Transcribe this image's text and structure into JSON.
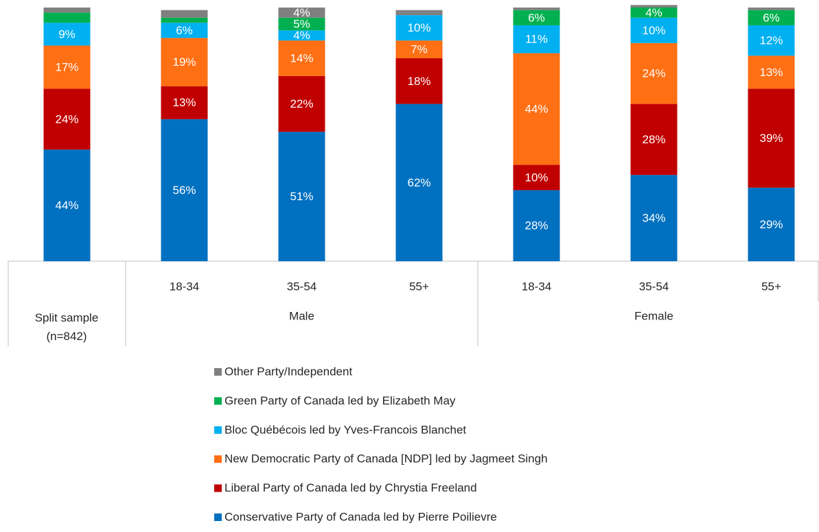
{
  "chart_data": {
    "type": "stacked-bar",
    "categories": [
      "Split sample (n=842)",
      "18-34",
      "35-54",
      "55+",
      "18-34",
      "35-54",
      "55+"
    ],
    "groups": [
      {
        "name": "Male",
        "categories": [
          1,
          2,
          3
        ]
      },
      {
        "name": "Female",
        "categories": [
          4,
          5,
          6
        ]
      }
    ],
    "ylim": [
      0,
      100
    ],
    "series": [
      {
        "name": "Conservative Party of Canada led by Pierre Poilievre",
        "color": "#0070c0",
        "values": [
          44,
          56,
          51,
          62,
          28,
          34,
          29
        ],
        "value_labels": [
          "44%",
          "56%",
          "51%",
          "62%",
          "28%",
          "34%",
          "29%"
        ]
      },
      {
        "name": "Liberal Party of Canada led by Chrystia Freeland",
        "color": "#c00000",
        "values": [
          24,
          13,
          22,
          18,
          10,
          28,
          39
        ],
        "value_labels": [
          "24%",
          "13%",
          "22%",
          "18%",
          "10%",
          "28%",
          "39%"
        ]
      },
      {
        "name": "New Democratic Party of Canada [NDP] led by Jagmeet Singh",
        "color": "#ff6f13",
        "values": [
          17,
          19,
          14,
          7,
          44,
          24,
          13
        ],
        "value_labels": [
          "17%",
          "19%",
          "14%",
          "7%",
          "44%",
          "24%",
          "13%"
        ]
      },
      {
        "name": "Bloc Québécois led by Yves-Francois Blanchet",
        "color": "#00b0f0",
        "values": [
          9,
          6,
          4,
          10,
          11,
          10,
          12
        ],
        "value_labels": [
          "9%",
          "6%",
          "4%",
          "10%",
          "11%",
          "10%",
          "12%"
        ]
      },
      {
        "name": "Green Party of Canada led by Elizabeth May",
        "color": "#00b050",
        "values": [
          4,
          2,
          5,
          0,
          6,
          4,
          6
        ],
        "value_labels": [
          null,
          null,
          "5%",
          null,
          "6%",
          "4%",
          "6%"
        ]
      },
      {
        "name": "Other Party/Independent",
        "color": "#808080",
        "values": [
          2,
          3,
          4,
          2,
          1,
          1,
          1
        ],
        "value_labels": [
          null,
          null,
          "4%",
          null,
          null,
          null,
          null
        ]
      }
    ]
  }
}
